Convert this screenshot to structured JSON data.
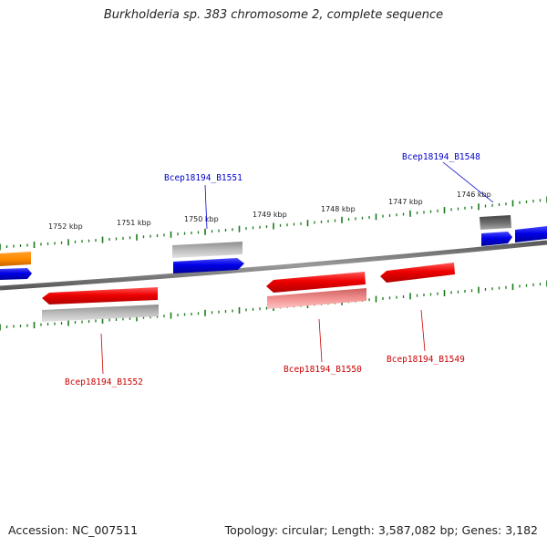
{
  "title": "Burkholderia sp. 383 chromosome 2, complete sequence",
  "scale_labels": [
    "1752 kbp",
    "1751 kbp",
    "1750 kbp",
    "1749 kbp",
    "1748 kbp",
    "1747 kbp",
    "1746 kbp"
  ],
  "gene_labels": {
    "b1548": "Bcep18194_B1548",
    "b1549": "Bcep18194_B1549",
    "b1550": "Bcep18194_B1550",
    "b1551": "Bcep18194_B1551",
    "b1552": "Bcep18194_B1552"
  },
  "colors": {
    "forward_strand": "#0000ee",
    "reverse_strand": "#ee0000",
    "backbone": "#808080",
    "ticks": "#1a7a1a"
  },
  "footer": {
    "accession": "Accession: NC_007511",
    "summary": "Topology: circular; Length: 3,587,082 bp; Genes: 3,182"
  }
}
